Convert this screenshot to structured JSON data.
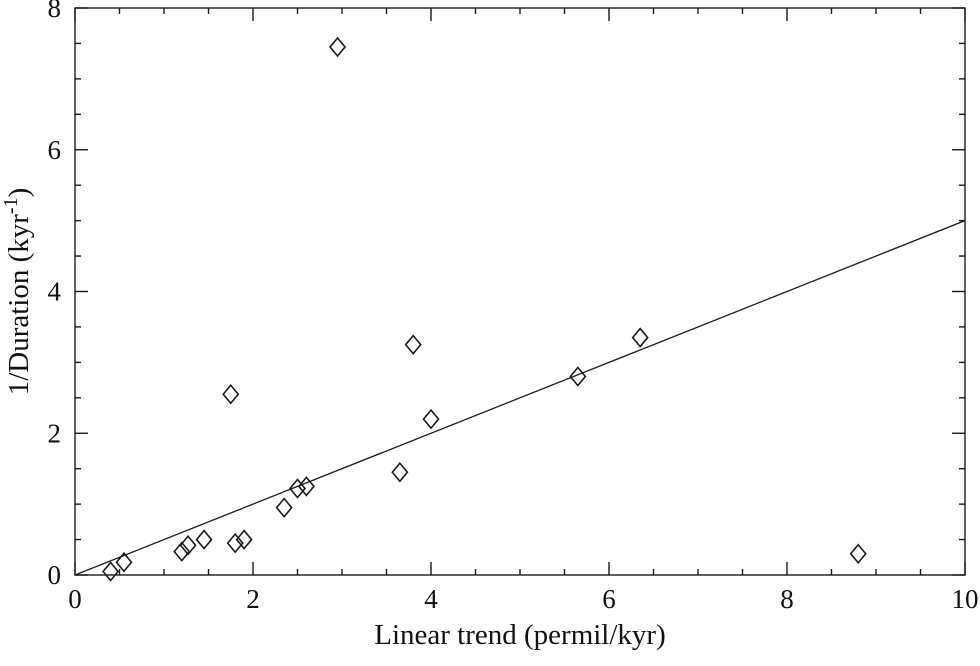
{
  "chart_data": {
    "type": "scatter",
    "title": "",
    "xlabel": "Linear trend (permil/kyr)",
    "ylabel_prefix": "1/Duration (kyr",
    "ylabel_sup": "-1",
    "ylabel_suffix": ")",
    "xlim": [
      0,
      10
    ],
    "ylim": [
      0,
      8
    ],
    "xticks": [
      0,
      2,
      4,
      6,
      8,
      10
    ],
    "yticks": [
      0,
      2,
      4,
      6,
      8
    ],
    "x_minor_step": 0.5,
    "y_minor_step": 0.5,
    "grid": false,
    "legend": "none",
    "marker": "open-diamond",
    "points": [
      [
        0.4,
        0.05
      ],
      [
        0.55,
        0.18
      ],
      [
        1.2,
        0.33
      ],
      [
        1.27,
        0.42
      ],
      [
        1.45,
        0.5
      ],
      [
        1.75,
        2.55
      ],
      [
        1.8,
        0.45
      ],
      [
        1.9,
        0.5
      ],
      [
        2.35,
        0.95
      ],
      [
        2.5,
        1.22
      ],
      [
        2.6,
        1.25
      ],
      [
        2.95,
        7.45
      ],
      [
        3.65,
        1.45
      ],
      [
        3.8,
        3.25
      ],
      [
        4.0,
        2.2
      ],
      [
        5.65,
        2.8
      ],
      [
        6.35,
        3.35
      ],
      [
        8.8,
        0.3
      ]
    ],
    "fit_line": {
      "x1": 0,
      "y1": 0,
      "x2": 10,
      "y2": 5.0
    },
    "colors": {
      "axis": "#1a1a1a",
      "marker": "#1a1a1a",
      "line": "#1a1a1a",
      "background": "#ffffff"
    }
  }
}
